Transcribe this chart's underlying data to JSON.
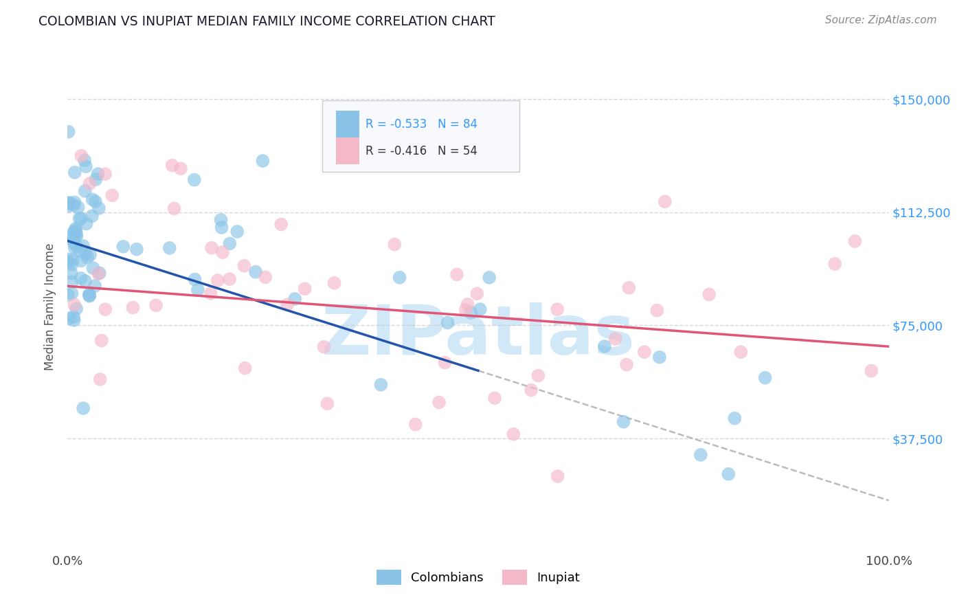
{
  "title": "COLOMBIAN VS INUPIAT MEDIAN FAMILY INCOME CORRELATION CHART",
  "source_text": "Source: ZipAtlas.com",
  "ylabel": "Median Family Income",
  "xlim": [
    0.0,
    1.0
  ],
  "ylim": [
    0,
    162500
  ],
  "yticks": [
    37500,
    75000,
    112500,
    150000
  ],
  "ytick_labels": [
    "$37,500",
    "$75,000",
    "$112,500",
    "$150,000"
  ],
  "xtick_labels": [
    "0.0%",
    "100.0%"
  ],
  "legend_r1": "R = -0.533",
  "legend_n1": "N = 84",
  "legend_r2": "R = -0.416",
  "legend_n2": "N = 54",
  "color_blue": "#89c4e8",
  "color_pink": "#f4b8c8",
  "color_blue_line": "#2255aa",
  "color_pink_line": "#e05575",
  "color_dashed": "#bbbbbb",
  "color_title": "#1a1a2e",
  "color_source": "#888888",
  "color_ytick": "#3399ff",
  "watermark_color": "#d0e8f8",
  "background_color": "#ffffff",
  "grid_color": "#cccccc",
  "blue_line_x0": 0.0,
  "blue_line_y0": 103000,
  "blue_line_x1": 0.5,
  "blue_line_y1": 60000,
  "dash_line_x0": 0.5,
  "dash_line_y0": 60000,
  "dash_line_x1": 1.0,
  "dash_line_y1": 17000,
  "pink_line_x0": 0.0,
  "pink_line_y0": 88000,
  "pink_line_x1": 1.0,
  "pink_line_y1": 68000
}
